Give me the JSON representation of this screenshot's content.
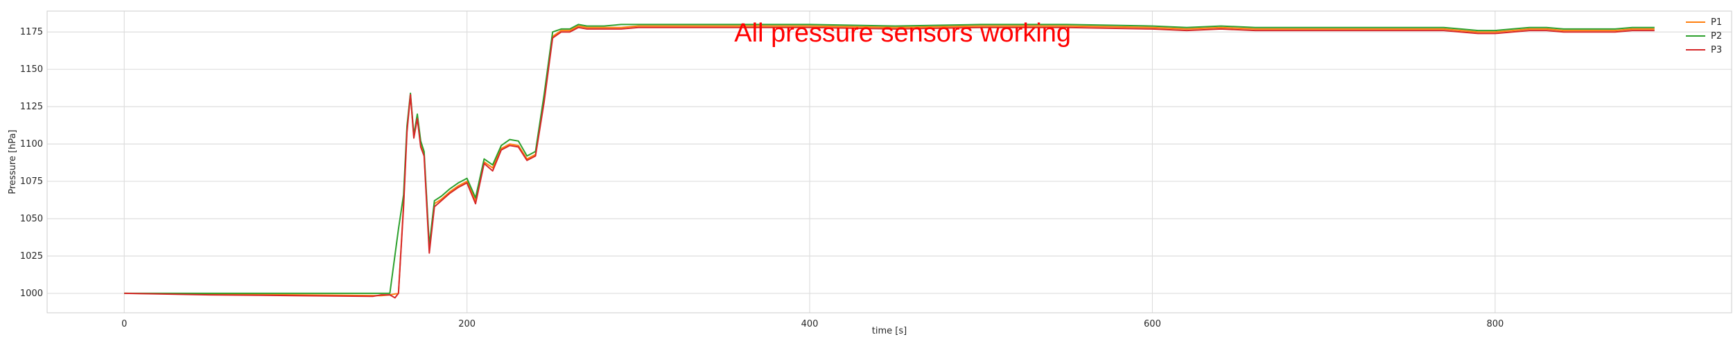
{
  "chart_data": {
    "type": "line",
    "title": "",
    "xlabel": "time [s]",
    "ylabel": "Pressure [hPa]",
    "xlim": [
      -45,
      938
    ],
    "ylim": [
      987,
      1189
    ],
    "x_ticks": [
      0,
      200,
      400,
      600,
      800
    ],
    "y_ticks": [
      1000,
      1025,
      1050,
      1075,
      1100,
      1125,
      1150,
      1175
    ],
    "grid": true,
    "legend_position": "top-right",
    "annotation": {
      "text": "All pressure sensors working",
      "x": 356,
      "y": 1175,
      "color": "#ff0000"
    },
    "series": [
      {
        "name": "P1",
        "color": "#ff7f0e",
        "x": [
          0,
          50,
          100,
          150,
          155,
          160,
          163,
          165,
          167,
          169,
          171,
          173,
          175,
          178,
          181,
          185,
          190,
          195,
          200,
          205,
          210,
          215,
          220,
          225,
          230,
          235,
          240,
          245,
          250,
          255,
          260,
          265,
          270,
          280,
          290,
          300,
          350,
          400,
          450,
          500,
          550,
          600,
          620,
          640,
          660,
          680,
          700,
          720,
          740,
          760,
          770,
          780,
          790,
          800,
          810,
          820,
          830,
          840,
          850,
          860,
          870,
          880,
          893
        ],
        "y": [
          1000,
          999.5,
          999,
          998.5,
          999,
          1000,
          1060,
          1110,
          1133,
          1105,
          1118,
          1100,
          1093,
          1030,
          1060,
          1063,
          1068,
          1072,
          1075,
          1062,
          1088,
          1084,
          1097,
          1100,
          1099,
          1090,
          1093,
          1130,
          1172,
          1176,
          1176,
          1179,
          1178,
          1178,
          1178,
          1179,
          1179,
          1179,
          1178,
          1179,
          1179,
          1178,
          1177,
          1178,
          1177,
          1177,
          1177,
          1177,
          1177,
          1177,
          1177,
          1176,
          1175,
          1175,
          1176,
          1177,
          1177,
          1176,
          1176,
          1176,
          1176,
          1177,
          1177
        ]
      },
      {
        "name": "P2",
        "color": "#2ca02c",
        "x": [
          0,
          50,
          100,
          150,
          155,
          160,
          163,
          165,
          167,
          169,
          171,
          173,
          175,
          178,
          181,
          185,
          190,
          195,
          200,
          205,
          210,
          215,
          220,
          225,
          230,
          235,
          240,
          245,
          250,
          255,
          260,
          265,
          270,
          280,
          290,
          300,
          350,
          400,
          450,
          500,
          550,
          600,
          620,
          640,
          660,
          680,
          700,
          720,
          740,
          760,
          770,
          780,
          790,
          800,
          810,
          820,
          830,
          840,
          850,
          860,
          870,
          880,
          893
        ],
        "y": [
          1000,
          1000,
          1000,
          1000,
          1000,
          1043,
          1066,
          1112,
          1134,
          1106,
          1120,
          1102,
          1095,
          1032,
          1062,
          1065,
          1070,
          1074,
          1077,
          1064,
          1090,
          1086,
          1099,
          1103,
          1102,
          1092,
          1095,
          1133,
          1175,
          1177,
          1177,
          1180,
          1179,
          1179,
          1180,
          1180,
          1180,
          1180,
          1179,
          1180,
          1180,
          1179,
          1178,
          1179,
          1178,
          1178,
          1178,
          1178,
          1178,
          1178,
          1178,
          1177,
          1176,
          1176,
          1177,
          1178,
          1178,
          1177,
          1177,
          1177,
          1177,
          1178,
          1178
        ]
      },
      {
        "name": "P3",
        "color": "#d62728",
        "x": [
          0,
          50,
          100,
          145,
          150,
          155,
          158,
          160,
          163,
          165,
          167,
          169,
          171,
          173,
          175,
          178,
          181,
          185,
          190,
          195,
          200,
          205,
          210,
          215,
          220,
          225,
          230,
          235,
          240,
          245,
          250,
          255,
          260,
          265,
          270,
          280,
          290,
          300,
          350,
          400,
          450,
          500,
          550,
          600,
          620,
          640,
          660,
          680,
          700,
          720,
          740,
          760,
          770,
          780,
          790,
          800,
          810,
          820,
          830,
          840,
          850,
          860,
          870,
          880,
          893
        ],
        "y": [
          1000,
          999,
          998.5,
          998,
          999,
          999,
          997,
          1000,
          1058,
          1108,
          1133,
          1104,
          1117,
          1098,
          1092,
          1027,
          1058,
          1062,
          1067,
          1071,
          1074,
          1060,
          1087,
          1082,
          1096,
          1099,
          1098,
          1089,
          1092,
          1128,
          1171,
          1175,
          1175,
          1178,
          1177,
          1177,
          1177,
          1178,
          1178,
          1178,
          1177,
          1178,
          1178,
          1177,
          1176,
          1177,
          1176,
          1176,
          1176,
          1176,
          1176,
          1176,
          1176,
          1175,
          1174,
          1174,
          1175,
          1176,
          1176,
          1175,
          1175,
          1175,
          1175,
          1176,
          1176
        ]
      }
    ]
  }
}
